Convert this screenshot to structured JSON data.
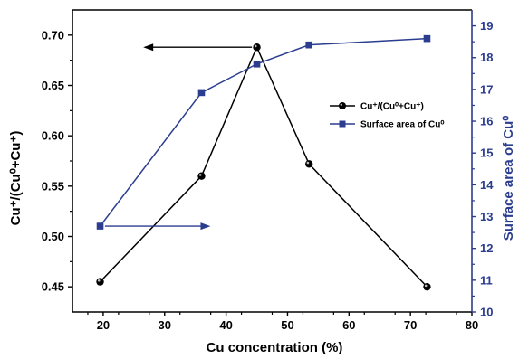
{
  "chart_data": {
    "type": "line",
    "xlabel": "Cu concentration (%)",
    "xlim": [
      15,
      80
    ],
    "xticks": [
      20,
      30,
      40,
      50,
      60,
      70,
      80
    ],
    "ylabel_left": "Cu⁺/(Cu⁰+Cu⁺)",
    "ylim_left": [
      0.425,
      0.725
    ],
    "yticks_left": [
      "0.45",
      "0.50",
      "0.55",
      "0.60",
      "0.65",
      "0.70"
    ],
    "ylabel_right": "Surface area of Cu⁰",
    "ylim_right": [
      10,
      19.5
    ],
    "yticks_right": [
      "10",
      "11",
      "12",
      "13",
      "14",
      "15",
      "16",
      "17",
      "18",
      "19"
    ],
    "grid": false,
    "legend_position": "right",
    "series": [
      {
        "name": "Cu⁺/(Cu⁰+Cu⁺)",
        "axis": "left",
        "marker": "circle",
        "color": "#000000",
        "x": [
          19.5,
          36,
          45,
          53.5,
          72.7
        ],
        "y": [
          0.455,
          0.56,
          0.688,
          0.572,
          0.45
        ]
      },
      {
        "name": "Surface area of Cu⁰",
        "axis": "right",
        "marker": "square",
        "color": "#2b3d8f",
        "x": [
          19.5,
          36,
          45,
          53.5,
          72.7
        ],
        "y": [
          12.7,
          16.9,
          17.8,
          18.4,
          18.6
        ]
      }
    ],
    "colors": {
      "left_axis": "#000000",
      "right_axis": "#2b3d8f",
      "arrow_left": "#000000",
      "arrow_right": "#2b3d8f"
    }
  }
}
